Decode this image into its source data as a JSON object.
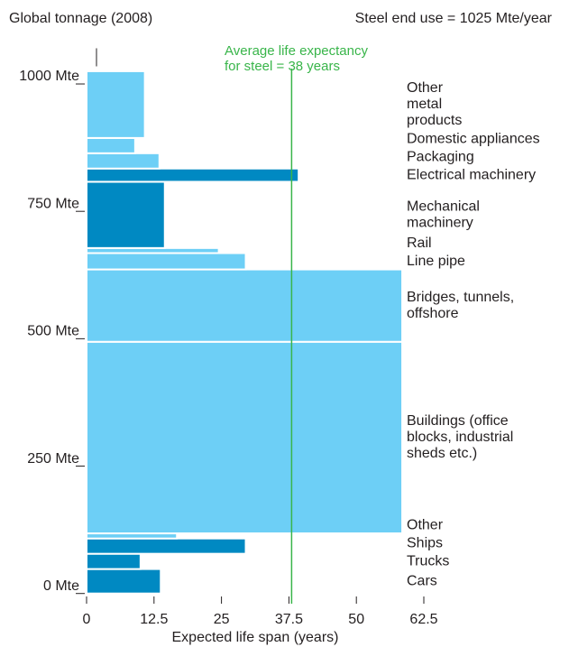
{
  "chart_data": {
    "type": "variable-width-bar",
    "title": "Steel end use = 1025 Mte/year",
    "y_label": "Global tonnage (2008)",
    "x_label": "Expected life span (years)",
    "annotation": {
      "lines": [
        "Average life expectancy",
        "for steel = 38 years"
      ],
      "x": 38,
      "color": "#39b54a"
    },
    "categories": [
      [
        "Cars"
      ],
      [
        "Trucks"
      ],
      [
        "Ships"
      ],
      [
        "Other"
      ],
      [
        "Buildings (office",
        "blocks, industrial",
        "sheds etc.)"
      ],
      [
        "Bridges, tunnels,",
        "offshore"
      ],
      [
        "Line pipe"
      ],
      [
        "Rail"
      ],
      [
        "Mechanical",
        "machinery"
      ],
      [
        "Electrical machinery"
      ],
      [
        "Packaging"
      ],
      [
        "Domestic appliances"
      ],
      [
        "Other",
        "metal",
        "products"
      ]
    ],
    "tonnage": [
      48,
      30,
      30,
      10,
      376,
      142,
      32,
      10,
      130,
      26,
      30,
      30,
      131
    ],
    "values": [
      13.75,
      10,
      29.5,
      16.75,
      58.5,
      58.5,
      29.5,
      24.5,
      14.5,
      39.3,
      13.5,
      9,
      10.8
    ],
    "colors": [
      "#0089c2",
      "#0089c2",
      "#0089c2",
      "#6dcff6",
      "#6dcff6",
      "#6dcff6",
      "#6dcff6",
      "#6dcff6",
      "#0089c2",
      "#0089c2",
      "#6dcff6",
      "#6dcff6",
      "#6dcff6"
    ],
    "xlim": [
      0,
      62.5
    ],
    "xticks": [
      0,
      12.5,
      25,
      37.5,
      50,
      62.5
    ],
    "ylim": [
      -20,
      1070
    ],
    "yticks": [
      {
        "value": 0,
        "label": "0 Mte"
      },
      {
        "value": 250,
        "label": "250 Mte"
      },
      {
        "value": 500,
        "label": "500 Mte"
      },
      {
        "value": 750,
        "label": "750 Mte"
      },
      {
        "value": 1000,
        "label": "1000 Mte"
      }
    ]
  }
}
